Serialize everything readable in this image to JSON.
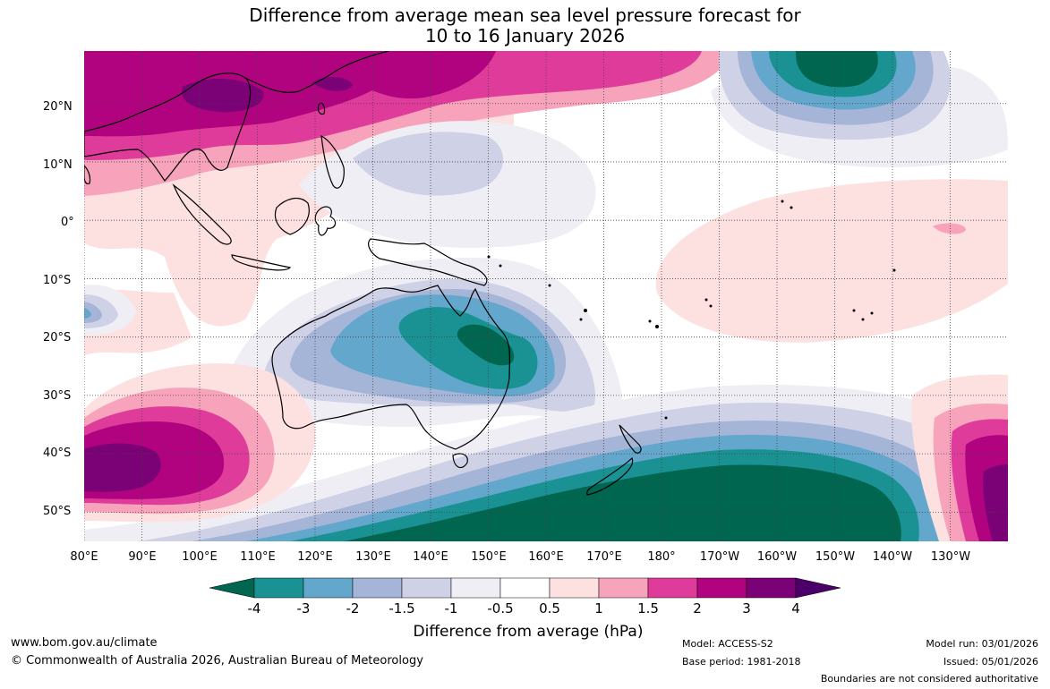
{
  "title": {
    "line1": "Difference from average mean sea level pressure forecast for",
    "line2": "10 to 16 January 2026"
  },
  "map": {
    "lat_ticks": [
      "20°N",
      "10°N",
      "0°",
      "10°S",
      "20°S",
      "30°S",
      "40°S",
      "50°S"
    ],
    "lon_ticks": [
      "80°E",
      "90°E",
      "100°E",
      "110°E",
      "120°E",
      "130°E",
      "140°E",
      "150°E",
      "160°E",
      "170°E",
      "180°",
      "170°W",
      "160°W",
      "150°W",
      "140°W",
      "130°W"
    ],
    "lat_range": [
      -55,
      29
    ],
    "lon_range_east": [
      80,
      240
    ],
    "lat_values": [
      20,
      10,
      0,
      -10,
      -20,
      -30,
      -40,
      -50
    ],
    "lon_values": [
      80,
      90,
      100,
      110,
      120,
      130,
      140,
      150,
      160,
      170,
      180,
      190,
      200,
      210,
      220,
      230
    ]
  },
  "colorbar": {
    "title": "Difference from average (hPa)",
    "labels": [
      "-4",
      "-3",
      "-2",
      "-1.5",
      "-1",
      "-0.5",
      "0.5",
      "1",
      "1.5",
      "2",
      "3",
      "4"
    ],
    "colors": [
      "#00664f",
      "#1a9294",
      "#63a7cc",
      "#a4b5d8",
      "#cfd2e6",
      "#f0eef5",
      "#ffffff",
      "#fde0e0",
      "#f7a3bc",
      "#df3b9a",
      "#b1037f",
      "#7a0176",
      "#4a0068"
    ]
  },
  "footer": {
    "url": "www.bom.gov.au/climate",
    "copyright": "© Commonwealth of Australia 2026, Australian Bureau of Meteorology",
    "model": "Model: ACCESS-S2",
    "base_period": "Base period: 1981-2018",
    "model_run": "Model run: 03/01/2026",
    "issued": "Issued: 05/01/2026",
    "disclaimer": "Boundaries are not considered authoritative"
  }
}
